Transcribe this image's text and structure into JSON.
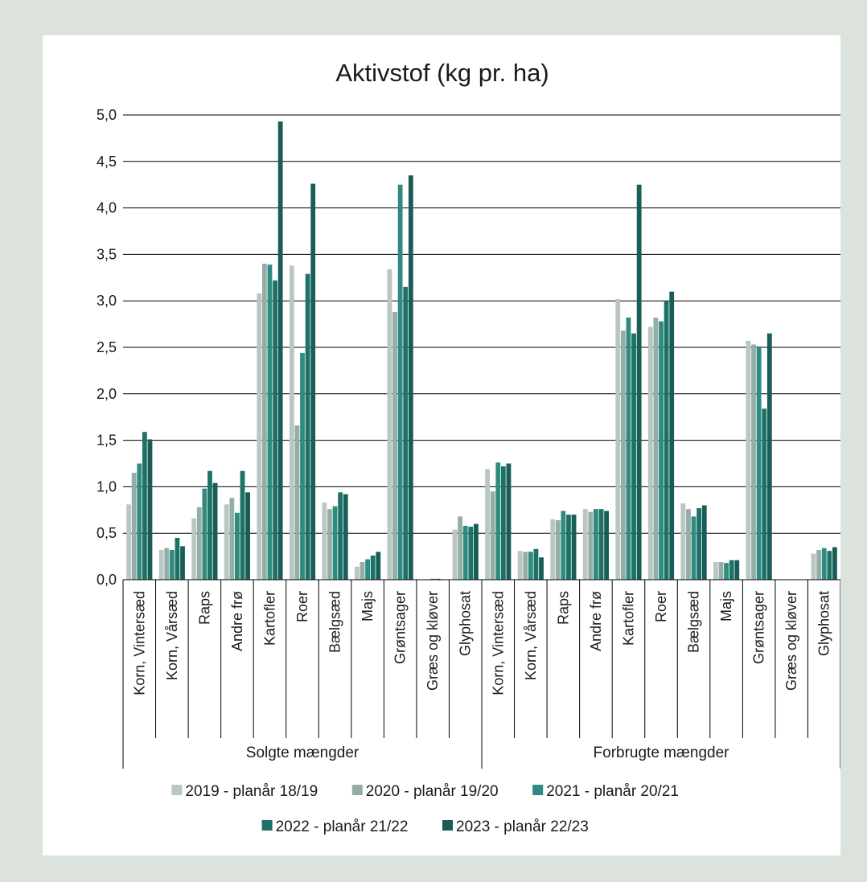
{
  "chart_data": {
    "type": "bar",
    "title": "Aktivstof (kg pr. ha)",
    "xlabel": "",
    "ylabel": "",
    "ylim": [
      0,
      5
    ],
    "yticks": [
      "0,0",
      "0,5",
      "1,0",
      "1,5",
      "2,0",
      "2,5",
      "3,0",
      "3,5",
      "4,0",
      "4,5",
      "5,0"
    ],
    "ytick_values": [
      0,
      0.5,
      1,
      1.5,
      2,
      2.5,
      3,
      3.5,
      4,
      4.5,
      5
    ],
    "grid": true,
    "legend_position": "bottom",
    "groups": [
      {
        "label": "Solgte mængder",
        "categories": [
          "Korn, Vintersæd",
          "Korn, Vårsæd",
          "Raps",
          "Andre frø",
          "Kartofler",
          "Roer",
          "Bælgsæd",
          "Majs",
          "Grøntsager",
          "Græs og kløver",
          "Glyphosat"
        ]
      },
      {
        "label": "Forbrugte mængder",
        "categories": [
          "Korn, Vintersæd",
          "Korn, Vårsæd",
          "Raps",
          "Andre frø",
          "Kartofler",
          "Roer",
          "Bælgsæd",
          "Majs",
          "Grøntsager",
          "Græs og kløver",
          "Glyphosat"
        ]
      }
    ],
    "series": [
      {
        "name": "2019 - planår 18/19",
        "color": "#b9c6c1",
        "values": [
          0.81,
          0.32,
          0.66,
          0.81,
          3.08,
          3.38,
          0.83,
          0.14,
          3.34,
          0.0,
          0.54,
          1.19,
          0.31,
          0.65,
          0.76,
          3.02,
          2.72,
          0.82,
          0.19,
          2.57,
          0.0,
          0.28
        ]
      },
      {
        "name": "2020 - planår 19/20",
        "color": "#94aea7",
        "values": [
          1.15,
          0.34,
          0.78,
          0.88,
          3.4,
          1.66,
          0.76,
          0.19,
          2.88,
          0.0,
          0.68,
          0.95,
          0.3,
          0.64,
          0.73,
          2.68,
          2.82,
          0.76,
          0.19,
          2.53,
          0.0,
          0.32
        ]
      },
      {
        "name": "2021 - planår 20/21",
        "color": "#2f8a80",
        "values": [
          1.25,
          0.32,
          0.98,
          0.72,
          3.39,
          2.44,
          0.79,
          0.22,
          4.25,
          0.01,
          0.58,
          1.26,
          0.3,
          0.74,
          0.76,
          2.82,
          2.78,
          0.68,
          0.18,
          2.51,
          0.0,
          0.34
        ]
      },
      {
        "name": "2022 - planår 21/22",
        "color": "#1d7268",
        "values": [
          1.59,
          0.45,
          1.17,
          1.17,
          3.22,
          3.29,
          0.94,
          0.26,
          3.15,
          0.01,
          0.57,
          1.22,
          0.33,
          0.7,
          0.76,
          2.65,
          3.0,
          0.77,
          0.21,
          1.84,
          0.0,
          0.31
        ]
      },
      {
        "name": "2023 - planår 22/23",
        "color": "#1a5c58",
        "values": [
          1.51,
          0.36,
          1.04,
          0.94,
          4.93,
          4.26,
          0.92,
          0.3,
          4.35,
          0.0,
          0.6,
          1.25,
          0.24,
          0.7,
          0.74,
          4.25,
          3.1,
          0.8,
          0.21,
          2.65,
          0.0,
          0.35
        ]
      }
    ]
  }
}
